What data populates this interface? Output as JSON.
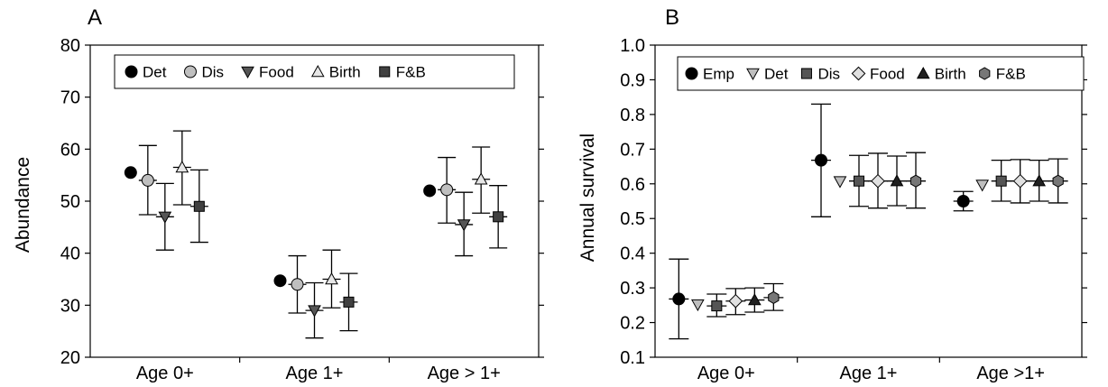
{
  "chart_data": [
    {
      "panel_label": "A",
      "type": "scatter",
      "ylabel": "Abundance",
      "ylim": [
        20,
        80
      ],
      "yticks": [
        20,
        30,
        40,
        50,
        60,
        70,
        80
      ],
      "categories": [
        "Age 0+",
        "Age 1+",
        "Age > 1+"
      ],
      "legend_position": "top",
      "series": [
        {
          "name": "Det",
          "marker": "circle",
          "color": "#000000",
          "values": [
            55.5,
            34.7,
            52.0
          ],
          "err_low": [
            null,
            null,
            null
          ],
          "err_high": [
            null,
            null,
            null
          ]
        },
        {
          "name": "Dis",
          "marker": "circle",
          "color": "#bfbfbf",
          "values": [
            54.0,
            34.0,
            52.2
          ],
          "err_low": [
            47.4,
            28.5,
            45.8
          ],
          "err_high": [
            60.7,
            39.5,
            58.4
          ]
        },
        {
          "name": "Food",
          "marker": "triangle-down",
          "color": "#555555",
          "values": [
            47.0,
            29.0,
            45.5
          ],
          "err_low": [
            40.6,
            23.7,
            39.5
          ],
          "err_high": [
            53.4,
            34.3,
            51.7
          ]
        },
        {
          "name": "Birth",
          "marker": "triangle-up",
          "color": "#e6e6e6",
          "values": [
            56.5,
            35.0,
            54.2
          ],
          "err_low": [
            49.3,
            29.5,
            47.7
          ],
          "err_high": [
            63.5,
            40.6,
            60.4
          ]
        },
        {
          "name": "F&B",
          "marker": "square",
          "color": "#404040",
          "values": [
            49.0,
            30.6,
            47.0
          ],
          "err_low": [
            42.1,
            25.1,
            41.0
          ],
          "err_high": [
            56.0,
            36.1,
            53.0
          ]
        }
      ]
    },
    {
      "panel_label": "B",
      "type": "scatter",
      "ylabel": "Annual survival",
      "ylim": [
        0.1,
        1.0
      ],
      "yticks": [
        "0.1",
        "0.2",
        "0.3",
        "0.4",
        "0.5",
        "0.6",
        "0.7",
        "0.8",
        "0.9",
        "1.0"
      ],
      "categories": [
        "Age 0+",
        "Age 1+",
        "Age >1+"
      ],
      "legend_position": "top",
      "series": [
        {
          "name": "Emp",
          "marker": "circle",
          "color": "#000000",
          "values": [
            0.268,
            0.668,
            0.55
          ],
          "err_low": [
            0.153,
            0.505,
            0.522
          ],
          "err_high": [
            0.383,
            0.83,
            0.578
          ]
        },
        {
          "name": "Det",
          "marker": "triangle-down",
          "color": "#bfbfbf",
          "values": [
            0.252,
            0.607,
            0.597
          ],
          "err_low": [
            null,
            null,
            null
          ],
          "err_high": [
            null,
            null,
            null
          ]
        },
        {
          "name": "Dis",
          "marker": "square",
          "color": "#555555",
          "values": [
            0.248,
            0.608,
            0.608
          ],
          "err_low": [
            0.217,
            0.535,
            0.55
          ],
          "err_high": [
            0.282,
            0.682,
            0.668
          ]
        },
        {
          "name": "Food",
          "marker": "diamond",
          "color": "#e0e0e0",
          "values": [
            0.262,
            0.608,
            0.608
          ],
          "err_low": [
            0.223,
            0.53,
            0.545
          ],
          "err_high": [
            0.298,
            0.688,
            0.67
          ]
        },
        {
          "name": "Birth",
          "marker": "triangle-up",
          "color": "#202020",
          "values": [
            0.265,
            0.608,
            0.608
          ],
          "err_low": [
            0.23,
            0.537,
            0.55
          ],
          "err_high": [
            0.3,
            0.68,
            0.668
          ]
        },
        {
          "name": "F&B",
          "marker": "hexagon",
          "color": "#777777",
          "values": [
            0.272,
            0.608,
            0.608
          ],
          "err_low": [
            0.235,
            0.53,
            0.545
          ],
          "err_high": [
            0.312,
            0.69,
            0.672
          ]
        }
      ]
    }
  ]
}
